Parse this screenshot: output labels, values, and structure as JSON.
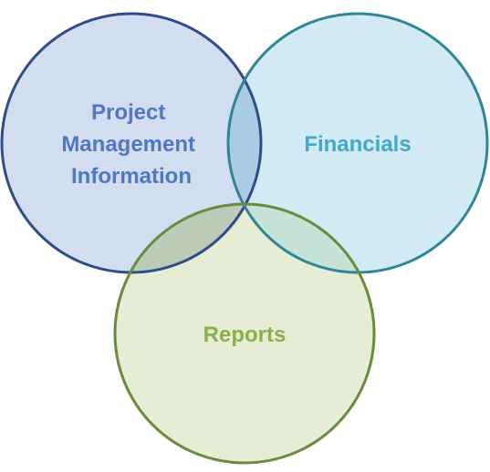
{
  "diagram": {
    "circles": [
      {
        "id": "pm",
        "label_lines": [
          "Project",
          "Management",
          "Information"
        ],
        "fill": "#d3ddf0",
        "stroke": "#2f4d87",
        "text_color": "#4e79c0"
      },
      {
        "id": "fin",
        "label_lines": [
          "Financials"
        ],
        "fill": "#d2eaf3",
        "stroke": "#2f8596",
        "text_color": "#43a9c6"
      },
      {
        "id": "rep",
        "label_lines": [
          "Reports"
        ],
        "fill": "#e5edd5",
        "stroke": "#6a8a3c",
        "text_color": "#8caf4c"
      }
    ],
    "overlap_colors": {
      "pm_fin": "#a9cbe3",
      "pm_rep": "#bdcab7",
      "fin_rep": "#c4e3d6",
      "all": "#b2cbc2"
    }
  }
}
